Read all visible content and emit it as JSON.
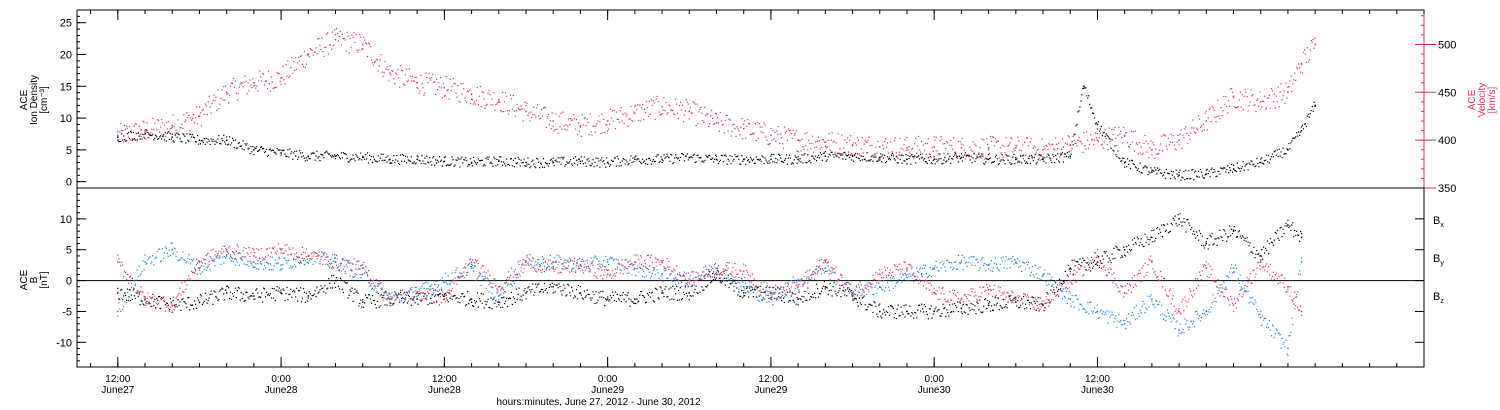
{
  "chart_data": [
    {
      "type": "scatter",
      "panel": "top",
      "left_axis": {
        "label_lines": [
          "ACE",
          "Ion Density",
          "[cm⁻³]"
        ],
        "ticks": [
          "0",
          "5",
          "10",
          "15",
          "20",
          "25"
        ],
        "range": [
          -1,
          27
        ],
        "color": "#000000"
      },
      "right_axis": {
        "label_lines": [
          "ACE",
          "Velocity",
          "[km/s]"
        ],
        "ticks": [
          "350",
          "400",
          "450",
          "500"
        ],
        "range": [
          350,
          536
        ],
        "color": "#e8305a"
      },
      "series": [
        {
          "axis": "left",
          "color": "#000000",
          "x_hours": [
            0,
            2,
            4,
            6,
            8,
            10,
            12,
            14,
            16,
            18,
            20,
            22,
            24,
            26,
            28,
            30,
            32,
            34,
            36,
            38,
            40,
            42,
            44,
            46,
            48,
            50,
            52,
            54,
            56,
            58,
            60,
            62,
            64,
            66,
            68,
            70,
            71,
            72,
            74,
            76,
            78,
            80,
            82,
            84,
            86,
            87,
            88
          ],
          "values": [
            7,
            7.5,
            7,
            6.5,
            6.5,
            5,
            4.5,
            4,
            4,
            3.8,
            3.5,
            3.5,
            3.2,
            3,
            3.2,
            3,
            3,
            3.2,
            3,
            3.5,
            3.5,
            3.8,
            3.5,
            3.5,
            3.5,
            3.5,
            4,
            4,
            3.8,
            3.5,
            3.5,
            3.8,
            3.5,
            3.5,
            3.5,
            4,
            15,
            9,
            3,
            1.5,
            1,
            1.2,
            2,
            3,
            5,
            8,
            12
          ]
        },
        {
          "axis": "right",
          "color": "#e8305a",
          "x_hours": [
            0,
            2,
            4,
            6,
            8,
            10,
            12,
            14,
            16,
            18,
            20,
            22,
            24,
            26,
            28,
            30,
            32,
            34,
            36,
            38,
            40,
            42,
            44,
            46,
            48,
            50,
            52,
            54,
            56,
            58,
            60,
            62,
            64,
            66,
            68,
            70,
            72,
            74,
            76,
            78,
            80,
            82,
            84,
            86,
            87,
            88
          ],
          "values": [
            405,
            410,
            415,
            425,
            450,
            460,
            465,
            490,
            505,
            500,
            470,
            460,
            455,
            448,
            442,
            430,
            420,
            415,
            420,
            428,
            435,
            430,
            418,
            412,
            405,
            400,
            398,
            395,
            393,
            392,
            393,
            392,
            392,
            392,
            390,
            395,
            400,
            405,
            390,
            400,
            420,
            445,
            440,
            450,
            480,
            500
          ]
        }
      ]
    },
    {
      "type": "scatter",
      "panel": "bottom",
      "left_axis": {
        "label_lines": [
          "ACE",
          "B",
          "[nT]"
        ],
        "ticks": [
          "-10",
          "-5",
          "0",
          "5",
          "10"
        ],
        "range": [
          -14,
          15
        ],
        "color": "#000000"
      },
      "zero_line": true,
      "legend": [
        {
          "name": "Bx",
          "base": "B",
          "sub": "x",
          "color": "#000000"
        },
        {
          "name": "By",
          "base": "B",
          "sub": "y",
          "color": "#1e87e6"
        },
        {
          "name": "Bz",
          "base": "B",
          "sub": "z",
          "color": "#e8305a"
        }
      ],
      "series": [
        {
          "name": "Bx",
          "color": "#000000",
          "x_hours": [
            0,
            2,
            4,
            6,
            8,
            10,
            12,
            14,
            16,
            18,
            20,
            22,
            24,
            26,
            28,
            30,
            32,
            34,
            36,
            38,
            40,
            42,
            44,
            46,
            48,
            50,
            52,
            54,
            56,
            58,
            60,
            62,
            64,
            66,
            68,
            70,
            72,
            74,
            76,
            78,
            80,
            82,
            84,
            86,
            87
          ],
          "values": [
            -2,
            -3,
            -4,
            -3.5,
            -2,
            -2.5,
            -2,
            -2.5,
            0,
            -3.5,
            -3,
            -3,
            -2.5,
            -3,
            -3.5,
            -2,
            -1,
            -2,
            -3,
            -3,
            -2,
            -2,
            1,
            -2,
            -2,
            -3,
            -1,
            -2.5,
            -5,
            -5,
            -5,
            -4.5,
            -4,
            -3.5,
            -4,
            2,
            3,
            5,
            7,
            10,
            6,
            8,
            4,
            9,
            7
          ]
        },
        {
          "name": "By",
          "color": "#1e87e6",
          "x_hours": [
            0,
            2,
            4,
            6,
            8,
            10,
            12,
            14,
            16,
            18,
            20,
            22,
            24,
            26,
            28,
            30,
            32,
            34,
            36,
            38,
            40,
            42,
            44,
            46,
            48,
            50,
            52,
            54,
            56,
            58,
            60,
            62,
            64,
            66,
            68,
            70,
            72,
            74,
            76,
            78,
            80,
            82,
            84,
            86,
            87
          ],
          "values": [
            -5,
            3,
            5,
            2,
            4,
            3,
            2.5,
            4,
            3,
            1,
            -3,
            -2,
            0,
            2,
            -2.5,
            3,
            3,
            2.5,
            3,
            2,
            1,
            0,
            2,
            -1,
            -3,
            0,
            2,
            -2,
            -1,
            0.5,
            2,
            3,
            2.5,
            3,
            1,
            -3,
            -5,
            -7,
            -3,
            -8,
            -5,
            2,
            -6,
            -11,
            3
          ]
        },
        {
          "name": "Bz",
          "color": "#e8305a",
          "x_hours": [
            0,
            2,
            4,
            6,
            8,
            10,
            12,
            14,
            16,
            18,
            20,
            22,
            24,
            26,
            28,
            30,
            32,
            34,
            36,
            38,
            40,
            42,
            44,
            46,
            48,
            50,
            52,
            54,
            56,
            58,
            60,
            62,
            64,
            66,
            68,
            70,
            72,
            74,
            76,
            78,
            80,
            82,
            84,
            86,
            87
          ],
          "values": [
            3,
            -3,
            -4,
            3,
            5,
            4,
            5,
            4,
            3,
            2,
            -3,
            -2,
            -3,
            3,
            -1,
            3,
            2,
            2.5,
            1,
            3,
            3,
            0,
            2,
            1.5,
            -2,
            -1,
            3,
            -2,
            1,
            2,
            -2,
            -3,
            -1.5,
            -3,
            -4,
            0,
            4,
            -2,
            3,
            -5,
            2,
            -4,
            3,
            -1,
            -5
          ]
        }
      ]
    }
  ],
  "x_axis": {
    "range_hours": [
      -3,
      96
    ],
    "ticks": [
      {
        "h": 0,
        "time": "12:00",
        "date": "June27"
      },
      {
        "h": 12,
        "time": "0:00",
        "date": "June28"
      },
      {
        "h": 24,
        "time": "12:00",
        "date": "June28"
      },
      {
        "h": 36,
        "time": "0:00",
        "date": "June29"
      },
      {
        "h": 48,
        "time": "12:00",
        "date": "June29"
      },
      {
        "h": 60,
        "time": "0:00",
        "date": "June30"
      },
      {
        "h": 72,
        "time": "12:00",
        "date": "June30"
      }
    ],
    "title": "hours:minutes, June 27, 2012 - June 30, 2012"
  }
}
